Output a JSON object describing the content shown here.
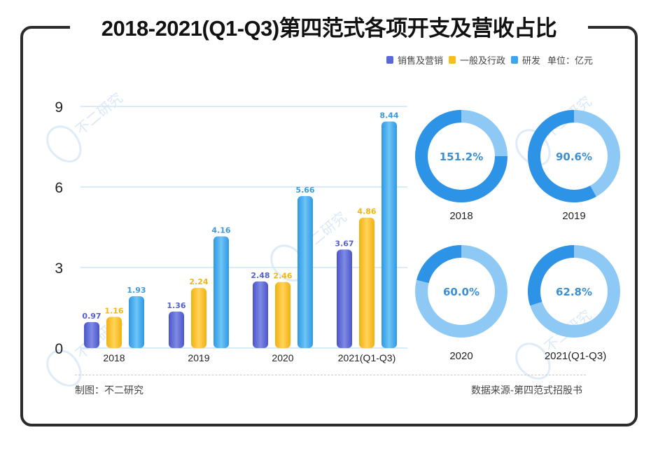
{
  "title": "2018-2021(Q1-Q3)第四范式各项开支及营收占比",
  "legend": {
    "items": [
      {
        "label": "销售及营销",
        "color": "#5b67d6"
      },
      {
        "label": "一般及行政",
        "color": "#f6bd1b"
      },
      {
        "label": "研发",
        "color": "#3ea6ec"
      }
    ],
    "unit": "单位：亿元"
  },
  "watermark": "不二研究",
  "footer": {
    "left": "制图：不二研究",
    "right": "数据来源-第四范式招股书"
  },
  "chart_data": [
    {
      "type": "bar",
      "title": "2018-2021(Q1-Q3)第四范式各项开支及营收占比",
      "xlabel": "",
      "ylabel": "亿元",
      "categories": [
        "2018",
        "2019",
        "2020",
        "2021(Q1-Q3)"
      ],
      "yticks": [
        0,
        3,
        6,
        9
      ],
      "ylim": [
        0,
        9
      ],
      "grid": true,
      "legend_position": "top-right",
      "series": [
        {
          "name": "销售及营销",
          "color": "#5b67d6",
          "values": [
            0.97,
            1.36,
            2.48,
            3.67
          ]
        },
        {
          "name": "一般及行政",
          "color": "#f6bd1b",
          "values": [
            1.16,
            2.24,
            2.46,
            4.86
          ]
        },
        {
          "name": "研发",
          "color": "#3ea6ec",
          "values": [
            1.93,
            4.16,
            5.66,
            8.44
          ]
        }
      ]
    },
    {
      "type": "pie",
      "title": "",
      "categories": [
        "2018",
        "2019",
        "2020",
        "2021(Q1-Q3)"
      ],
      "labels": [
        "151.2%",
        "90.6%",
        "60.0%",
        "62.8%"
      ],
      "values": [
        151.2,
        90.6,
        60.0,
        62.8
      ],
      "colors": {
        "primary": "#2d93e6",
        "secondary": "#8ec8f4"
      }
    }
  ]
}
